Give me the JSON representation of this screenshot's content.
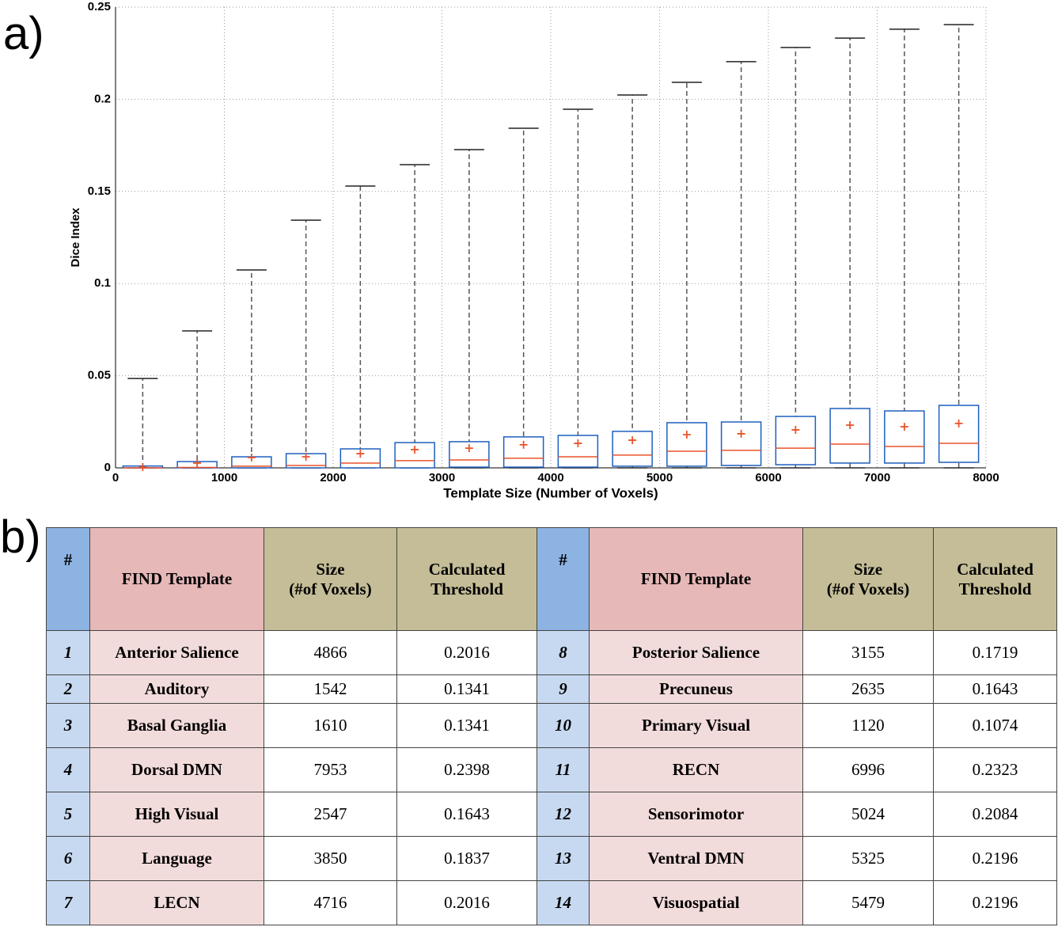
{
  "panel_labels": [
    "a)",
    "b)"
  ],
  "chart_data": {
    "type": "box",
    "xlabel": "Template Size (Number of Voxels)",
    "ylabel": "Dice Index",
    "xlim": [
      0,
      8000
    ],
    "xticks": [
      0,
      1000,
      2000,
      3000,
      4000,
      5000,
      6000,
      7000,
      8000
    ],
    "ylim": [
      0,
      0.25
    ],
    "yticks": [
      0,
      0.05,
      0.1,
      0.15,
      0.2,
      0.25
    ],
    "grid": true,
    "box_color": "#1f5fbf",
    "median_color": "#e8542b",
    "mean_color": "#e8542b",
    "whisker_color": "#555555",
    "boxes": [
      {
        "x": 250,
        "whislo": 0,
        "q1": 0,
        "med": 0,
        "q3": 0.001,
        "whishi": 0.0485,
        "mean": 0.0004
      },
      {
        "x": 750,
        "whislo": 0,
        "q1": 0,
        "med": 0.0002,
        "q3": 0.0034,
        "whishi": 0.0743,
        "mean": 0.0026
      },
      {
        "x": 1250,
        "whislo": 0,
        "q1": 0,
        "med": 0.0009,
        "q3": 0.006,
        "whishi": 0.1074,
        "mean": 0.0056
      },
      {
        "x": 1750,
        "whislo": 0,
        "q1": 0,
        "med": 0.0013,
        "q3": 0.0077,
        "whishi": 0.1344,
        "mean": 0.006
      },
      {
        "x": 2250,
        "whislo": 0,
        "q1": 0,
        "med": 0.0026,
        "q3": 0.0103,
        "whishi": 0.1529,
        "mean": 0.0077
      },
      {
        "x": 2750,
        "whislo": 0,
        "q1": 0,
        "med": 0.0039,
        "q3": 0.0137,
        "whishi": 0.1645,
        "mean": 0.0099
      },
      {
        "x": 3250,
        "whislo": 0,
        "q1": 0.0004,
        "med": 0.0043,
        "q3": 0.0142,
        "whishi": 0.1727,
        "mean": 0.0107
      },
      {
        "x": 3750,
        "whislo": 0,
        "q1": 0.0004,
        "med": 0.0052,
        "q3": 0.0168,
        "whishi": 0.1843,
        "mean": 0.0125
      },
      {
        "x": 4250,
        "whislo": 0,
        "q1": 0.0004,
        "med": 0.006,
        "q3": 0.0176,
        "whishi": 0.1946,
        "mean": 0.0133
      },
      {
        "x": 4750,
        "whislo": 0,
        "q1": 0.0009,
        "med": 0.0069,
        "q3": 0.0198,
        "whishi": 0.2023,
        "mean": 0.015
      },
      {
        "x": 5250,
        "whislo": 0,
        "q1": 0.0009,
        "med": 0.009,
        "q3": 0.0245,
        "whishi": 0.2092,
        "mean": 0.018
      },
      {
        "x": 5750,
        "whislo": 0,
        "q1": 0.0013,
        "med": 0.0095,
        "q3": 0.0249,
        "whishi": 0.2204,
        "mean": 0.0185
      },
      {
        "x": 6250,
        "whislo": 0,
        "q1": 0.0017,
        "med": 0.0107,
        "q3": 0.0279,
        "whishi": 0.2281,
        "mean": 0.0206
      },
      {
        "x": 6750,
        "whislo": 0,
        "q1": 0.0026,
        "med": 0.0129,
        "q3": 0.0322,
        "whishi": 0.2332,
        "mean": 0.0232
      },
      {
        "x": 7250,
        "whislo": 0,
        "q1": 0.0026,
        "med": 0.0116,
        "q3": 0.0309,
        "whishi": 0.238,
        "mean": 0.0223
      },
      {
        "x": 7750,
        "whislo": 0,
        "q1": 0.003,
        "med": 0.0133,
        "q3": 0.0339,
        "whishi": 0.2405,
        "mean": 0.0241
      }
    ]
  },
  "table": {
    "header": [
      "#",
      "FIND Template",
      "Size\n(#of Voxels)",
      "Calculated\nThreshold",
      "#",
      "FIND Template",
      "Size\n(#of Voxels)",
      "Calculated\nThreshold"
    ],
    "rows": [
      [
        "1",
        "Anterior Salience",
        "4866",
        "0.2016",
        "8",
        "Posterior Salience",
        "3155",
        "0.1719"
      ],
      [
        "2",
        "Auditory",
        "1542",
        "0.1341",
        "9",
        "Precuneus",
        "2635",
        "0.1643"
      ],
      [
        "3",
        "Basal Ganglia",
        "1610",
        "0.1341",
        "10",
        "Primary Visual",
        "1120",
        "0.1074"
      ],
      [
        "4",
        "Dorsal DMN",
        "7953",
        "0.2398",
        "11",
        "RECN",
        "6996",
        "0.2323"
      ],
      [
        "5",
        "High Visual",
        "2547",
        "0.1643",
        "12",
        "Sensorimotor",
        "5024",
        "0.2084"
      ],
      [
        "6",
        "Language",
        "3850",
        "0.1837",
        "13",
        "Ventral DMN",
        "5325",
        "0.2196"
      ],
      [
        "7",
        "LECN",
        "4716",
        "0.2016",
        "14",
        "Visuospatial",
        "5479",
        "0.2196"
      ]
    ]
  }
}
